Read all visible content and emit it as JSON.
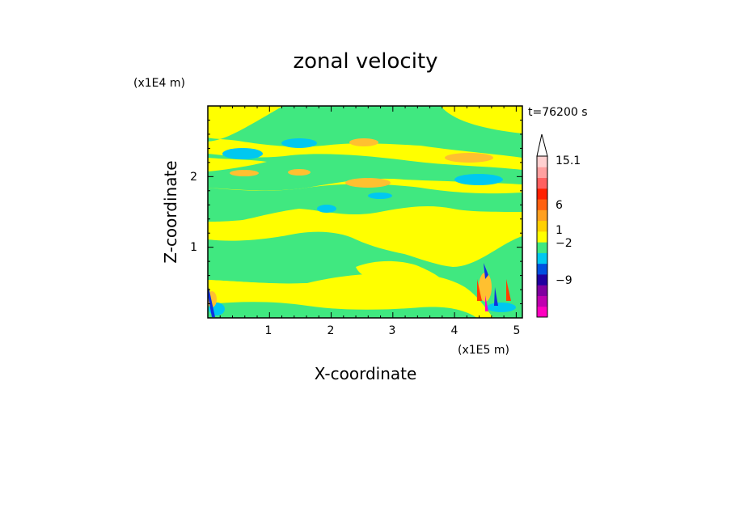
{
  "chart_data": {
    "type": "heatmap",
    "title": "zonal velocity",
    "xlabel": "X-coordinate",
    "ylabel": "Z-coordinate",
    "x_scale_label": "(x1E5 m)",
    "y_scale_label": "(x1E4 m)",
    "time_label": "t=76200 s",
    "x_ticks": [
      "1",
      "2",
      "3",
      "4",
      "5"
    ],
    "y_ticks": [
      "1",
      "2"
    ],
    "xlim": [
      0,
      5.1
    ],
    "ylim": [
      0,
      3.0
    ],
    "colorbar": {
      "colors": [
        "#ff00c0",
        "#c000b0",
        "#8000a0",
        "#2000a0",
        "#0050e0",
        "#00c8f0",
        "#40e880",
        "#ffff00",
        "#ffd000",
        "#ffa020",
        "#ff6010",
        "#ff2000",
        "#ff6060",
        "#ffa0a0",
        "#ffd0d0"
      ],
      "labels": [
        "15.1",
        "6",
        "1",
        "−2",
        "−9"
      ],
      "extend_top": true
    },
    "field_colors": {
      "yellow": "#ffff00",
      "green": "#40e880",
      "cyan": "#00c8f0",
      "orange": "#ffc030",
      "blue": "#1030e0",
      "red": "#ff4000",
      "magenta": "#ff00c0"
    }
  }
}
